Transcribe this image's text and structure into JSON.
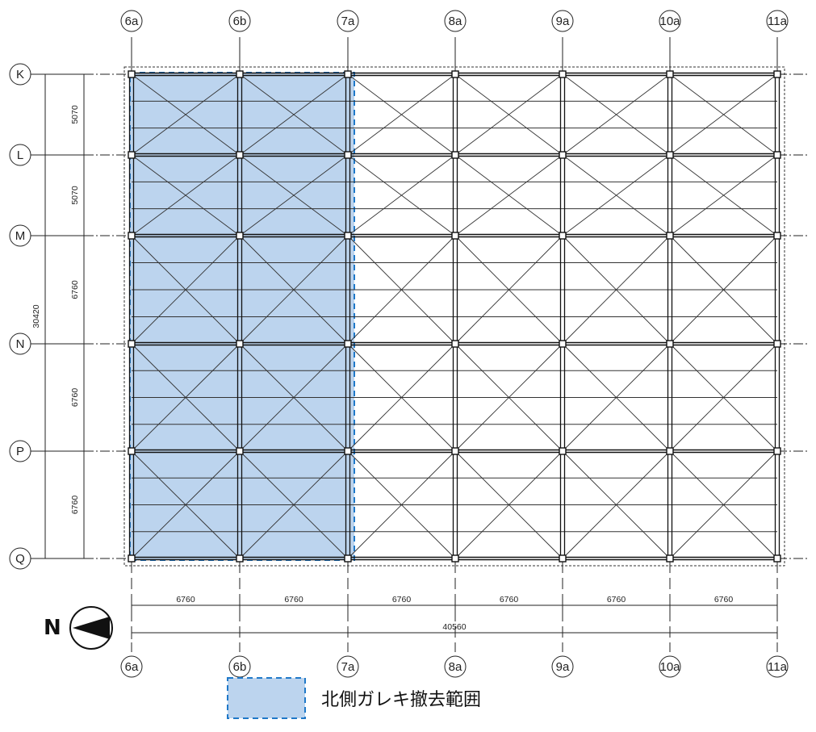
{
  "columns": [
    "6a",
    "6b",
    "7a",
    "8a",
    "9a",
    "10a",
    "11a"
  ],
  "rows": [
    "K",
    "L",
    "M",
    "N",
    "P",
    "Q"
  ],
  "dimensions": {
    "row_spacings": [
      "5070",
      "5070",
      "6760",
      "6760",
      "6760"
    ],
    "total_height": "30420",
    "column_spacings": [
      "6760",
      "6760",
      "6760",
      "6760",
      "6760",
      "6760"
    ],
    "total_width": "40560"
  },
  "north_label": "N",
  "highlight": {
    "from_column": "6a",
    "to_column": "7a",
    "from_row": "K",
    "to_row": "Q",
    "fill_color": "#bcd4ee",
    "border_color": "#1f78c8"
  },
  "legend": {
    "label": "北側ガレキ撤去範囲"
  }
}
